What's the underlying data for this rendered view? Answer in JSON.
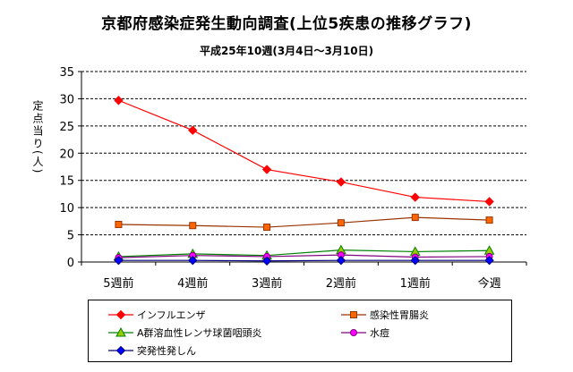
{
  "chart_data": {
    "type": "line",
    "title": "京都府感染症発生動向調査(上位5疾患の推移グラフ)",
    "subtitle": "平成25年10週(3月4日〜3月10日)",
    "ylabel": "定点当り(人)",
    "xlabel": "",
    "categories": [
      "5週前",
      "4週前",
      "3週前",
      "2週前",
      "1週前",
      "今週"
    ],
    "ylim": [
      0,
      35
    ],
    "yticks": [
      0,
      5,
      10,
      15,
      20,
      25,
      30,
      35
    ],
    "grid": true,
    "legend_position": "bottom",
    "series": [
      {
        "name": "インフルエンザ",
        "color": "#ff0000",
        "marker": "diamond",
        "values": [
          29.7,
          24.2,
          17.0,
          14.7,
          11.9,
          11.1
        ]
      },
      {
        "name": "感染性胃腸炎",
        "color": "#993300",
        "marker_fill": "#ff6600",
        "marker": "square",
        "values": [
          6.9,
          6.7,
          6.4,
          7.2,
          8.2,
          7.7
        ]
      },
      {
        "name": "A群溶血性レンサ球菌咽頭炎",
        "color": "#008000",
        "marker_fill": "#99cc00",
        "marker": "triangle",
        "values": [
          1.0,
          1.5,
          1.2,
          2.2,
          1.9,
          2.1
        ]
      },
      {
        "name": "水痘",
        "color": "#800080",
        "marker_fill": "#ff00ff",
        "marker": "circle",
        "values": [
          0.8,
          1.2,
          1.0,
          1.3,
          0.9,
          1.0
        ]
      },
      {
        "name": "突発性発しん",
        "color": "#000080",
        "marker_fill": "#0000ff",
        "marker": "diamond",
        "values": [
          0.3,
          0.3,
          0.2,
          0.3,
          0.3,
          0.3
        ]
      }
    ]
  }
}
